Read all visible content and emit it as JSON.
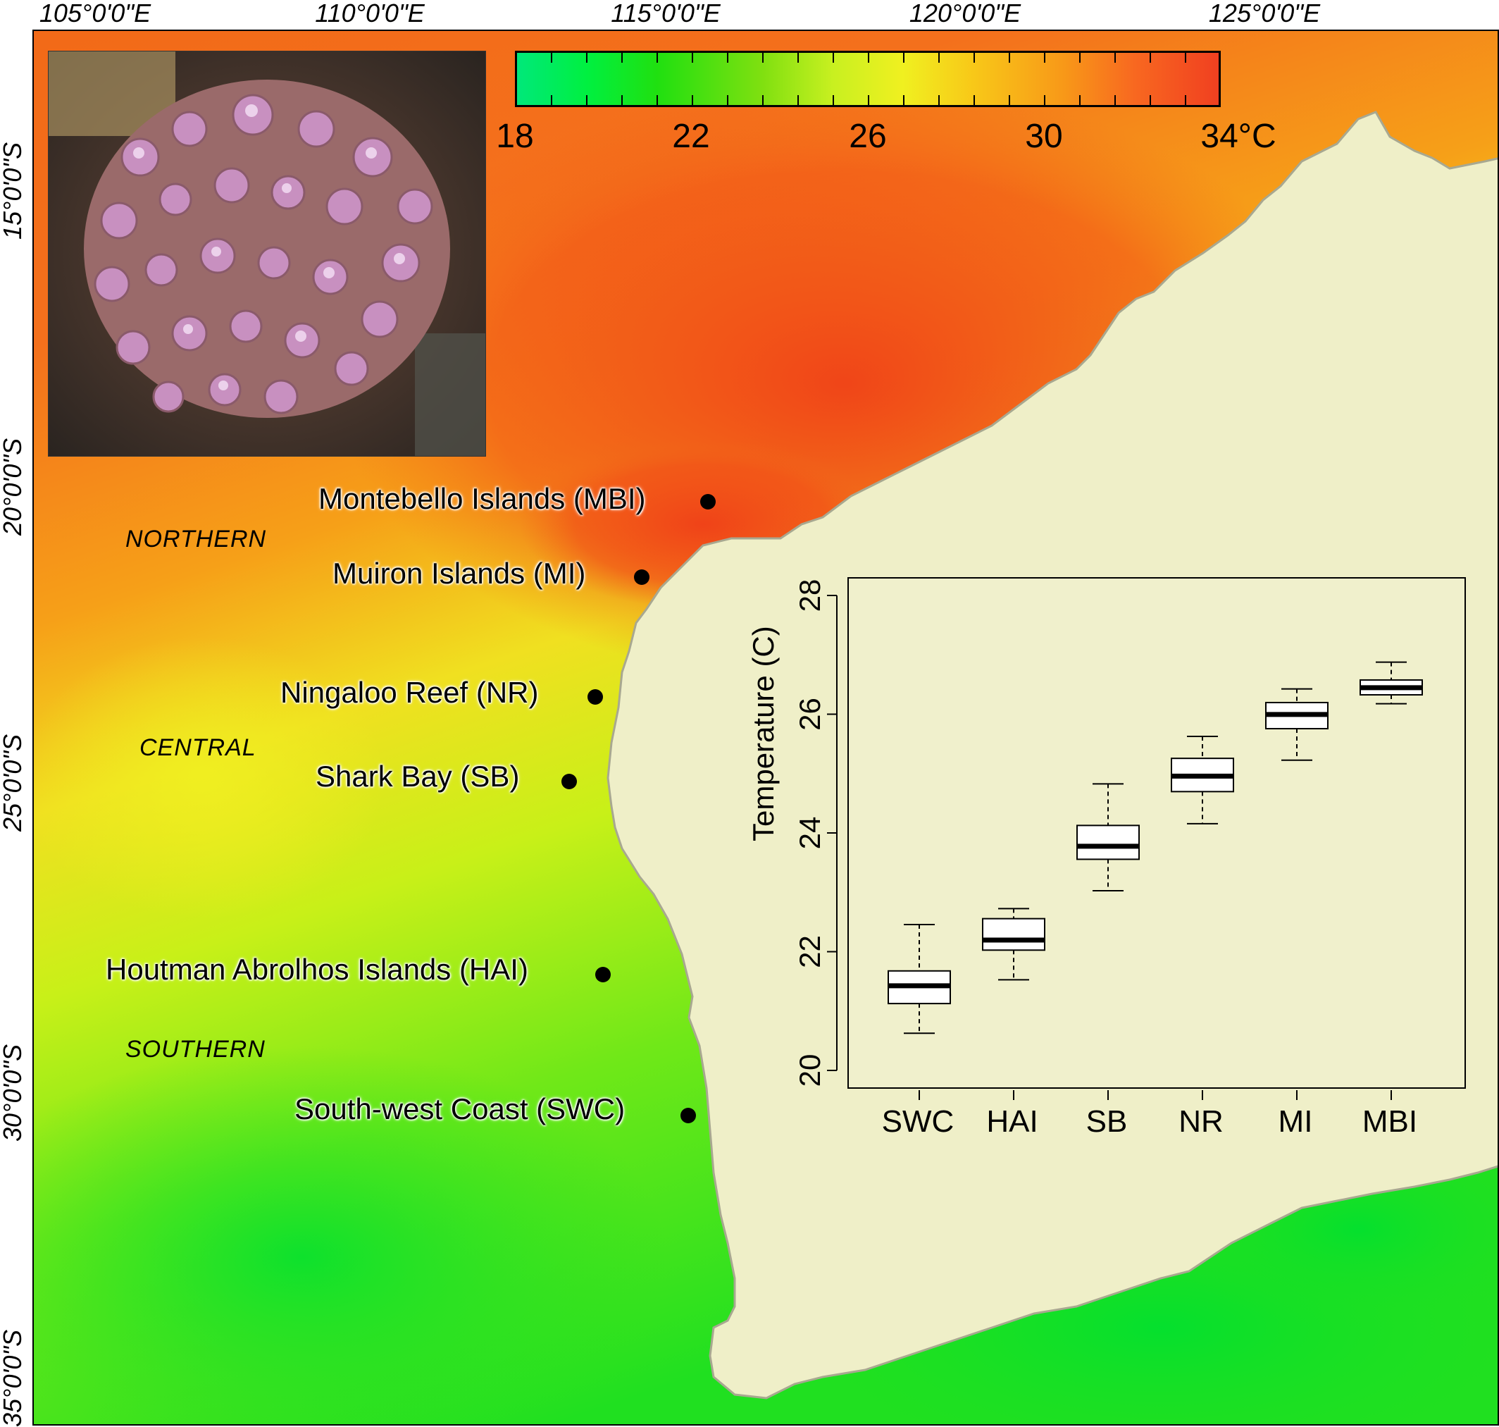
{
  "lon_labels": [
    "105°0'0\"E",
    "110°0'0\"E",
    "115°0'0\"E",
    "120°0'0\"E",
    "125°0'0\"E"
  ],
  "lat_labels": [
    "15°0'0\"S",
    "20°0'0\"S",
    "25°0'0\"S",
    "30°0'0\"S",
    "35°0'0\"S"
  ],
  "colorbar": {
    "ticks": [
      "18",
      "22",
      "26",
      "30",
      "34°C"
    ],
    "min": 18,
    "max": 34,
    "colors": [
      "#00e87a",
      "#20e010",
      "#c8f020",
      "#f0f020",
      "#f89818",
      "#f04020"
    ]
  },
  "regions": [
    "NORTHERN",
    "CENTRAL",
    "SOUTHERN"
  ],
  "sites": [
    {
      "label": "Montebello Islands (MBI)"
    },
    {
      "label": "Muiron Islands (MI)"
    },
    {
      "label": "Ningaloo Reef (NR)"
    },
    {
      "label": "Shark Bay (SB)"
    },
    {
      "label": "Houtman Abrolhos Islands (HAI)"
    },
    {
      "label": "South-west Coast (SWC)"
    }
  ],
  "colors": {
    "land": "#efefc8",
    "coast": "#a8a890",
    "warm_water": "#f04818",
    "cool_water": "#40e020"
  },
  "chart_data": {
    "type": "box",
    "categories": [
      "SWC",
      "HAI",
      "SB",
      "NR",
      "MI",
      "MBI"
    ],
    "series": [
      {
        "values": [
          {
            "min": 20.65,
            "q1": 21.15,
            "median": 21.45,
            "q3": 21.7,
            "max": 22.48
          },
          {
            "min": 21.55,
            "q1": 22.05,
            "median": 22.22,
            "q3": 22.58,
            "max": 22.75
          },
          {
            "min": 23.05,
            "q1": 23.58,
            "median": 23.8,
            "q3": 24.15,
            "max": 24.85
          },
          {
            "min": 24.18,
            "q1": 24.72,
            "median": 24.98,
            "q3": 25.28,
            "max": 25.65
          },
          {
            "min": 25.25,
            "q1": 25.78,
            "median": 26.02,
            "q3": 26.22,
            "max": 26.45
          },
          {
            "min": 26.2,
            "q1": 26.35,
            "median": 26.47,
            "q3": 26.6,
            "max": 26.9
          }
        ]
      }
    ],
    "ylabel": "Temperature (C)",
    "xlabel": "",
    "title": "",
    "ylim": [
      20,
      28
    ],
    "yticks": [
      "20",
      "22",
      "24",
      "26",
      "28"
    ]
  }
}
